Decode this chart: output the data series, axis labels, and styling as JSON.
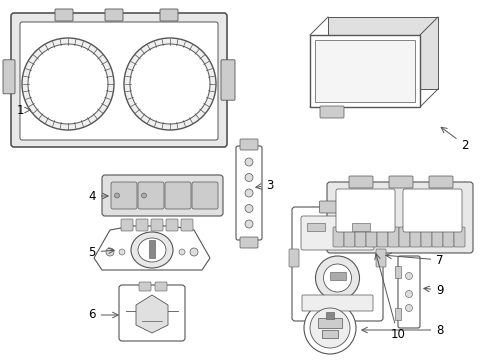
{
  "background_color": "#ffffff",
  "line_color": "#555555",
  "label_color": "#000000",
  "fig_w": 4.89,
  "fig_h": 3.6,
  "dpi": 100
}
